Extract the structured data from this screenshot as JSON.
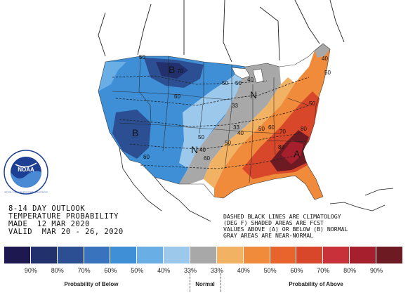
{
  "title_lines": [
    "8-14 DAY OUTLOOK",
    "TEMPERATURE PROBABILITY",
    "MADE  12 MAR 2020",
    "VALID  MAR 20 - 26, 2020"
  ],
  "note_lines": [
    "DASHED BLACK LINES ARE CLIMATOLOGY",
    "(DEG F) SHADED AREAS ARE FCST",
    "VALUES ABOVE (A) OR BELOW (B) NORMAL",
    "GRAY AREAS ARE NEAR-NORMAL"
  ],
  "logo_text": "NOAA",
  "logo_ring_text": "NATIONAL OCEANIC AND ATMOSPHERIC ADMINISTRATION",
  "region_labels": [
    {
      "id": "below-north",
      "text": "B"
    },
    {
      "id": "below-west",
      "text": "B"
    },
    {
      "id": "above-southeast",
      "text": "A"
    },
    {
      "id": "normal-central",
      "text": "N"
    },
    {
      "id": "normal-greatlakes",
      "text": "N"
    }
  ],
  "contour_labels": [
    "50",
    "70",
    "60",
    "50",
    "50",
    "40",
    "33",
    "33",
    "50",
    "60",
    "70",
    "80",
    "80",
    "50",
    "40",
    "60",
    "40",
    "60",
    "50",
    "50",
    "40",
    "50"
  ],
  "legend": {
    "colors": [
      "#1e1850",
      "#23306e",
      "#2b4f92",
      "#3a73bd",
      "#3f8fd6",
      "#6aaee6",
      "#9cc8ec",
      "#a8a8a8",
      "#f2b264",
      "#ef8b3b",
      "#e9642c",
      "#d9472a",
      "#c8303a",
      "#a61f2c",
      "#6e1a22"
    ],
    "ticks": [
      "90%",
      "80%",
      "70%",
      "60%",
      "50%",
      "40%",
      "33%",
      "33%",
      "40%",
      "50%",
      "60%",
      "70%",
      "80%",
      "90%"
    ],
    "category_below": "Probability of Below",
    "category_normal": "Normal",
    "category_above": "Probability of Above"
  }
}
